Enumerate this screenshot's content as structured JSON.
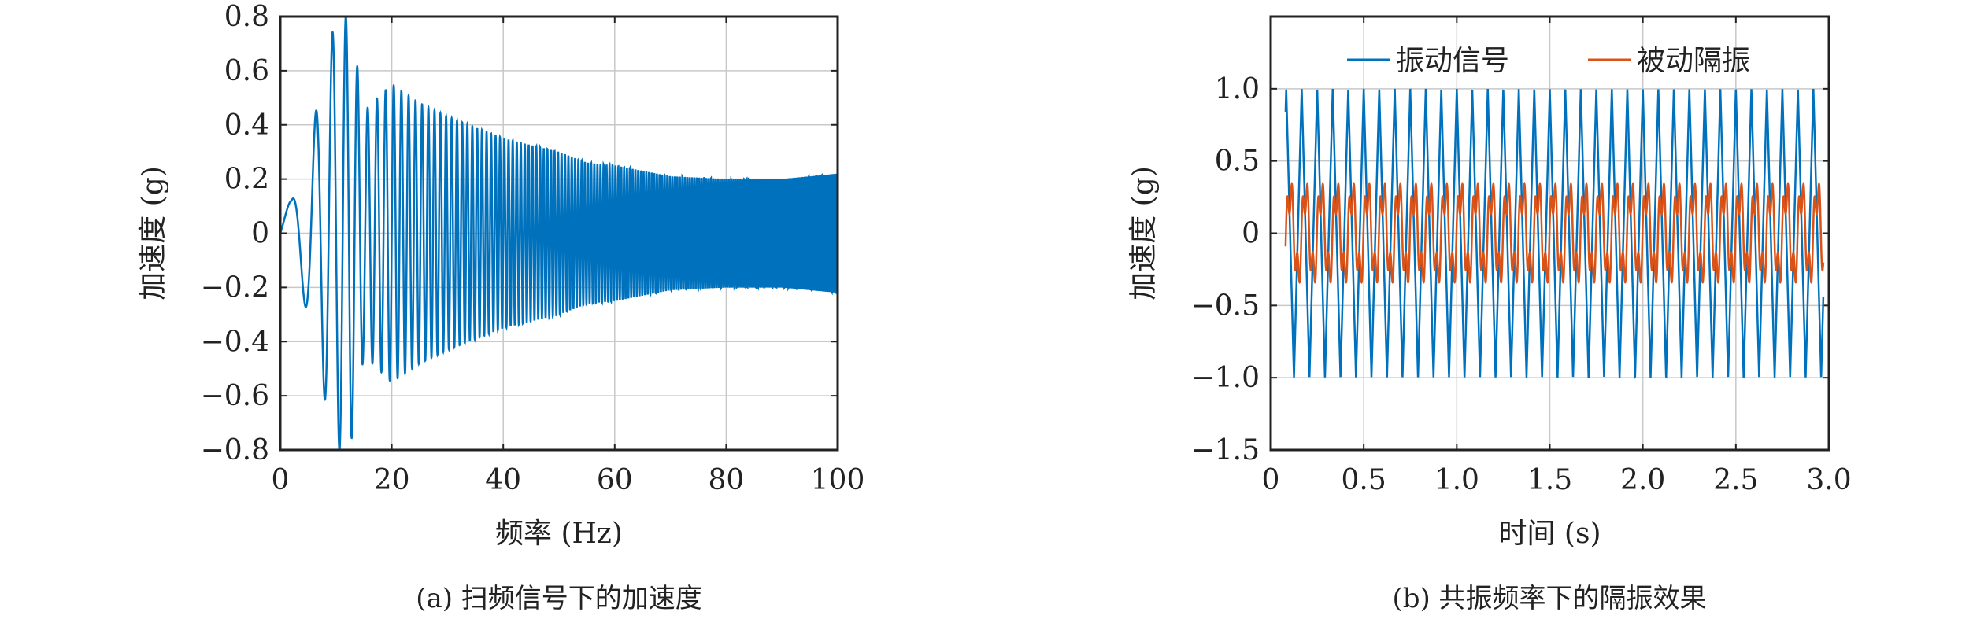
{
  "chart_data": [
    {
      "type": "line",
      "caption": "(a) 扫频信号下的加速度",
      "xlabel": "频率 (Hz)",
      "ylabel": "加速度 (g)",
      "xlim": [
        0,
        100
      ],
      "ylim": [
        -0.8,
        0.8
      ],
      "xticks": [
        "0",
        "20",
        "40",
        "60",
        "80",
        "100"
      ],
      "xtick_values": [
        0,
        20,
        40,
        60,
        80,
        100
      ],
      "yticks": [
        "−0.8",
        "−0.6",
        "−0.4",
        "−0.2",
        "0",
        "0.2",
        "0.4",
        "0.6",
        "0.8"
      ],
      "ytick_values": [
        -0.8,
        -0.6,
        -0.4,
        -0.2,
        0,
        0.2,
        0.4,
        0.6,
        0.8
      ],
      "grid": true,
      "series": [
        {
          "color": "#0072BD",
          "style": "swept-sine oscillation, amplitude envelope",
          "envelope_x": [
            0,
            2,
            5,
            7.5,
            10,
            12.5,
            15,
            20,
            25,
            30,
            40,
            50,
            55,
            60,
            70,
            80,
            90,
            100
          ],
          "envelope_amplitude": [
            0.1,
            0.12,
            0.3,
            0.57,
            0.8,
            0.8,
            0.45,
            0.55,
            0.48,
            0.43,
            0.35,
            0.3,
            0.26,
            0.25,
            0.21,
            0.2,
            0.2,
            0.22
          ]
        }
      ]
    },
    {
      "type": "line",
      "caption": "(b) 共振频率下的隔振效果",
      "xlabel": "时间 (s)",
      "ylabel": "加速度 (g)",
      "xlim": [
        0,
        3.0
      ],
      "ylim": [
        -1.5,
        1.5
      ],
      "xticks": [
        "0",
        "0.5",
        "1.0",
        "1.5",
        "2.0",
        "2.5",
        "3.0"
      ],
      "xtick_values": [
        0,
        0.5,
        1.0,
        1.5,
        2.0,
        2.5,
        3.0
      ],
      "yticks": [
        "−1.5",
        "−1.0",
        "−0.5",
        "0",
        "0.5",
        "1.0"
      ],
      "ytick_values": [
        -1.5,
        -1.0,
        -0.5,
        0,
        0.5,
        1.0
      ],
      "grid": true,
      "legend_position": "top",
      "series": [
        {
          "name": "振动信号",
          "color": "#0072BD",
          "amplitude": 1.0,
          "frequency_hz": 12,
          "t_start": 0.08,
          "t_end": 2.97
        },
        {
          "name": "被动隔振",
          "color": "#D95319",
          "amplitude": 0.4,
          "frequency_hz": 12,
          "t_start": 0.08,
          "t_end": 2.97
        }
      ]
    }
  ]
}
